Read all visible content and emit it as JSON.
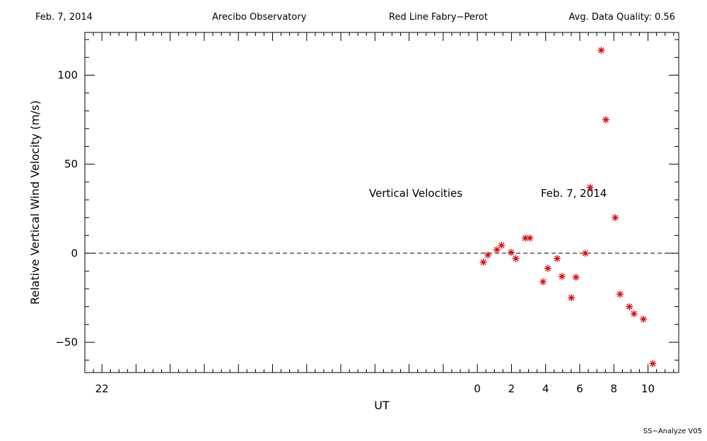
{
  "header": {
    "date": "Feb. 7, 2014",
    "observatory": "Arecibo Observatory",
    "instrument": "Red Line Fabry−Perot",
    "quality": "Avg. Data Quality: 0.56"
  },
  "footer": {
    "version": "SS−Analyze V05"
  },
  "chart_data": {
    "type": "scatter",
    "xlabel": "UT",
    "ylabel": "Relative Vertical Wind Velocity (m/s)",
    "xlim": [
      -23,
      11.8
    ],
    "ylim": [
      -67,
      124
    ],
    "x_ticks": [
      -22,
      0,
      2,
      4,
      6,
      8,
      10
    ],
    "x_tick_labels": [
      "22",
      "0",
      "2",
      "4",
      "6",
      "8",
      "10"
    ],
    "y_ticks": [
      -50,
      0,
      50,
      100
    ],
    "y_tick_labels": [
      "−50",
      "0",
      "50",
      "100"
    ],
    "grid": false,
    "reference_line": {
      "y": 0,
      "style": "dashed"
    },
    "annotations": [
      "Vertical Velocities",
      "Feb. 7, 2014"
    ],
    "marker_color": "#dd0000",
    "series": [
      {
        "x": [
          0.35,
          0.62,
          1.15,
          1.42,
          1.98,
          2.25,
          2.81,
          3.08,
          3.85,
          4.13,
          4.68,
          4.96,
          5.51,
          5.78,
          6.33,
          6.61,
          7.26,
          7.53,
          8.08,
          8.36,
          8.91,
          9.18,
          9.73,
          10.28
        ],
        "y": [
          -5,
          -1,
          2,
          4.5,
          0.5,
          -3,
          8.5,
          8.5,
          -16,
          -8.5,
          -3,
          -13,
          -25,
          -13.5,
          0,
          37,
          114,
          75,
          20,
          -23,
          -30,
          -34,
          -37,
          -62
        ]
      }
    ]
  }
}
